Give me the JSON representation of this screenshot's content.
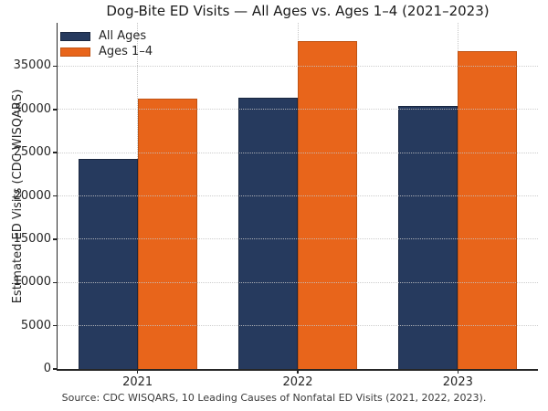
{
  "colors": {
    "background": "#ffffff",
    "axis": "#262626",
    "grid": "#c4c4c4",
    "title_text": "#1a1a1a",
    "tick_text": "#262626",
    "source_text": "#3a3a3a"
  },
  "chart_data": {
    "type": "bar",
    "title": "Dog-Bite ED Visits — All Ages vs. Ages 1–4 (2021–2023)",
    "categories": [
      "2021",
      "2022",
      "2023"
    ],
    "series": [
      {
        "name": "All Ages",
        "color": "#263A5E",
        "edge_color": "#1A2740",
        "values": [
          24300,
          31300,
          30400
        ]
      },
      {
        "name": "Ages 1–4",
        "color": "#E8651B",
        "edge_color": "#C05313",
        "values": [
          31200,
          37900,
          36700
        ]
      }
    ],
    "xlabel": "",
    "ylabel": "Estimated ED Visits (CDC WISQARS)",
    "ylim": [
      0,
      40000
    ],
    "ytick_step": 5000,
    "ytick_labels": [
      "0",
      "5000",
      "10000",
      "15000",
      "20000",
      "25000",
      "30000",
      "35000"
    ],
    "grid": "dotted, horizontal and vertical at category centers",
    "legend_position": "upper left, no frame",
    "caption": "Source: CDC WISQARS, 10 Leading Causes of Nonfatal ED Visits (2021, 2022, 2023)."
  }
}
